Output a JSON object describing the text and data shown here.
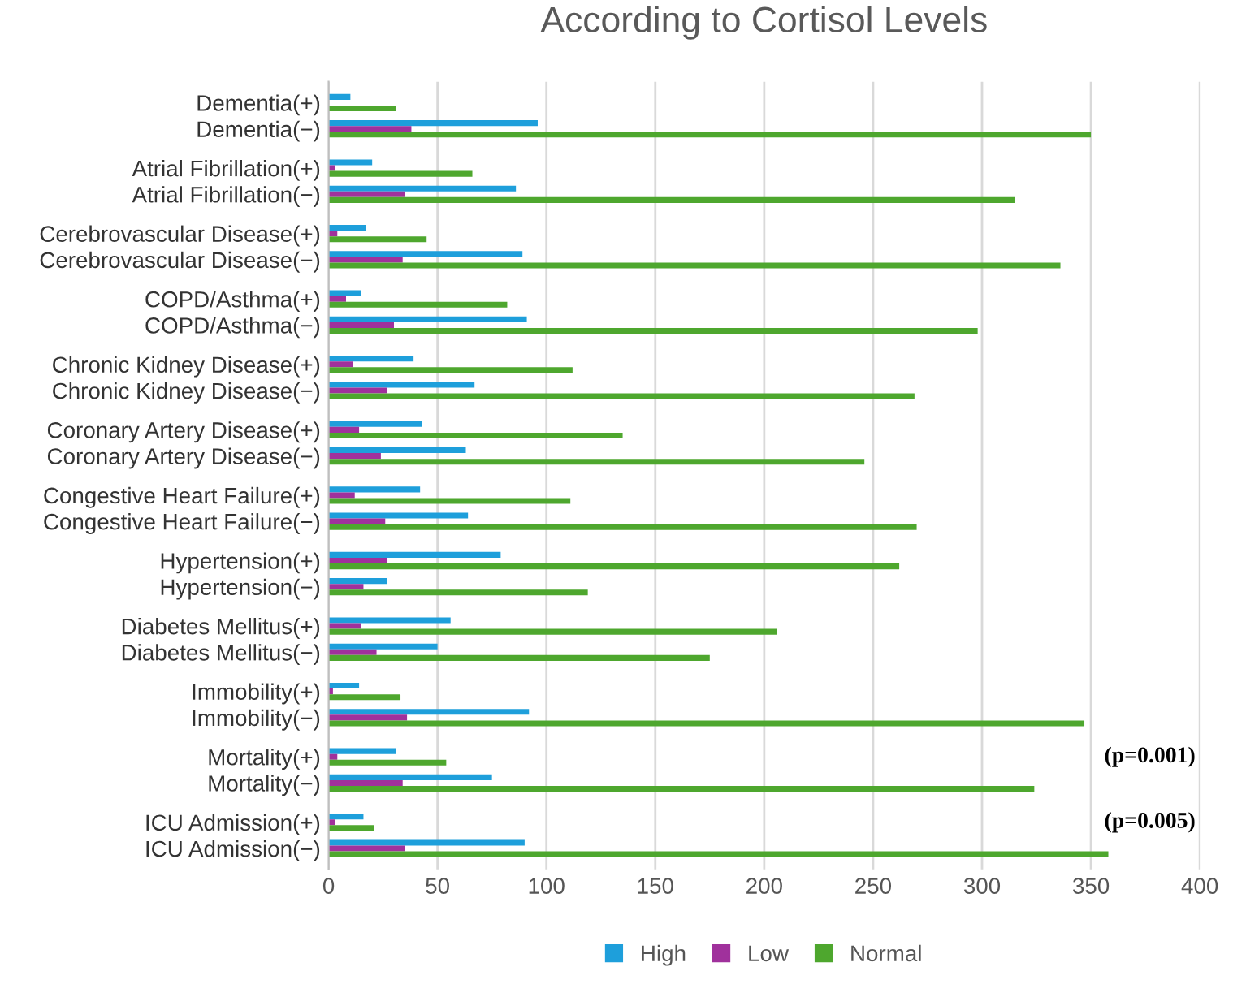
{
  "chart_data": {
    "type": "bar",
    "orientation": "horizontal",
    "title": "According to Cortisol Levels",
    "categories": [
      "Dementia(+)",
      "Dementia(−)",
      "Atrial Fibrillation(+)",
      "Atrial Fibrillation(−)",
      "Cerebrovascular Disease(+)",
      "Cerebrovascular Disease(−)",
      "COPD/Asthma(+)",
      "COPD/Asthma(−)",
      "Chronic Kidney Disease(+)",
      "Chronic Kidney Disease(−)",
      "Coronary Artery Disease(+)",
      "Coronary Artery Disease(−)",
      "Congestive Heart Failure(+)",
      "Congestive Heart Failure(−)",
      "Hypertension(+)",
      "Hypertension(−)",
      "Diabetes Mellitus(+)",
      "Diabetes Mellitus(−)",
      "Immobility(+)",
      "Immobility(−)",
      "Mortality(+)",
      "Mortality(−)",
      "ICU Admission(+)",
      "ICU Admission(−)"
    ],
    "series": [
      {
        "name": "High",
        "color": "#1e9fdb",
        "values": [
          10,
          96,
          20,
          86,
          17,
          89,
          15,
          91,
          39,
          67,
          43,
          63,
          42,
          64,
          79,
          27,
          56,
          50,
          14,
          92,
          31,
          75,
          16,
          90
        ]
      },
      {
        "name": "Low",
        "color": "#a0319c",
        "values": [
          0,
          38,
          3,
          35,
          4,
          34,
          8,
          30,
          11,
          27,
          14,
          24,
          12,
          26,
          27,
          16,
          15,
          22,
          2,
          36,
          4,
          34,
          3,
          35
        ]
      },
      {
        "name": "Normal",
        "color": "#4ea72e",
        "values": [
          31,
          350,
          66,
          315,
          45,
          336,
          82,
          298,
          112,
          269,
          135,
          246,
          111,
          270,
          262,
          119,
          206,
          175,
          33,
          347,
          54,
          324,
          21,
          358
        ]
      }
    ],
    "xlim": [
      0,
      400
    ],
    "xticks": [
      0,
      50,
      100,
      150,
      200,
      250,
      300,
      350,
      400
    ],
    "grid": "x",
    "legend": "bottom",
    "annotations": [
      "(p=0.001)",
      "(p=0.005)"
    ]
  }
}
